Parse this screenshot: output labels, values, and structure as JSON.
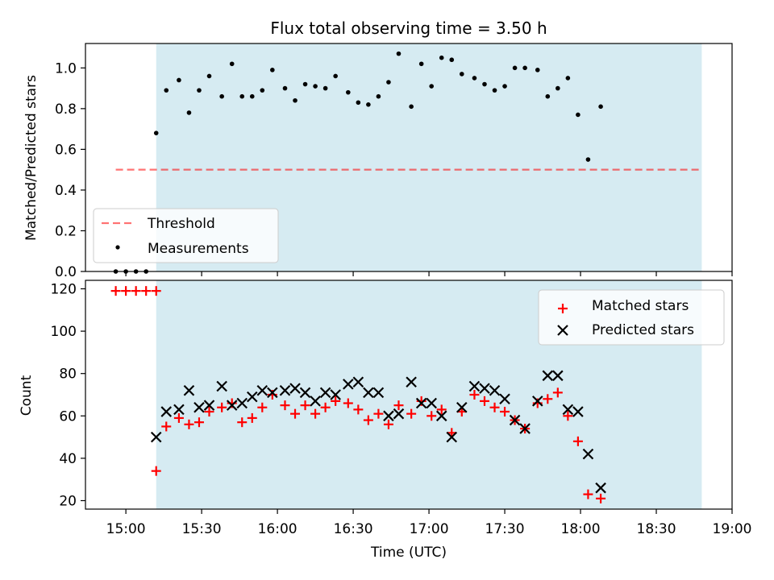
{
  "figure": {
    "title": "Flux total observing time = 3.50 h"
  },
  "colors": {
    "observing_span": "#add8e6",
    "threshold": "#ff0000",
    "measurements": "#000000",
    "matched": "#ff0000",
    "predicted": "#000000"
  },
  "chart_data": [
    {
      "type": "scatter",
      "title": "Flux total observing time = 3.50 h",
      "xlabel": "",
      "ylabel": "Matched/Predicted stars",
      "ylim": [
        0,
        1.12
      ],
      "yticks": [
        0.0,
        0.2,
        0.4,
        0.6,
        0.8,
        1.0
      ],
      "ytick_labels": [
        "0.0",
        "0.2",
        "0.4",
        "0.6",
        "0.8",
        "1.0"
      ],
      "xlim": [
        "14:44",
        "19:00"
      ],
      "shaded_span": [
        "15:12",
        "18:48"
      ],
      "legend_position": "lower-left",
      "threshold": {
        "name": "Threshold",
        "value": 0.5,
        "x": [
          "14:56",
          "18:48"
        ],
        "style": "dashed"
      },
      "series": [
        {
          "name": "Measurements",
          "marker": "dot",
          "points": [
            [
              "14:56",
              0.0
            ],
            [
              "15:00",
              0.0
            ],
            [
              "15:04",
              0.0
            ],
            [
              "15:08",
              0.0
            ],
            [
              "15:12",
              0.68
            ],
            [
              "15:16",
              0.89
            ],
            [
              "15:21",
              0.94
            ],
            [
              "15:25",
              0.78
            ],
            [
              "15:29",
              0.89
            ],
            [
              "15:33",
              0.96
            ],
            [
              "15:38",
              0.86
            ],
            [
              "15:42",
              1.02
            ],
            [
              "15:46",
              0.86
            ],
            [
              "15:50",
              0.86
            ],
            [
              "15:54",
              0.89
            ],
            [
              "15:58",
              0.99
            ],
            [
              "16:03",
              0.9
            ],
            [
              "16:07",
              0.84
            ],
            [
              "16:11",
              0.92
            ],
            [
              "16:15",
              0.91
            ],
            [
              "16:19",
              0.9
            ],
            [
              "16:23",
              0.96
            ],
            [
              "16:28",
              0.88
            ],
            [
              "16:32",
              0.83
            ],
            [
              "16:36",
              0.82
            ],
            [
              "16:40",
              0.86
            ],
            [
              "16:44",
              0.93
            ],
            [
              "16:48",
              1.07
            ],
            [
              "16:53",
              0.81
            ],
            [
              "16:57",
              1.02
            ],
            [
              "17:01",
              0.91
            ],
            [
              "17:05",
              1.05
            ],
            [
              "17:09",
              1.04
            ],
            [
              "17:13",
              0.97
            ],
            [
              "17:18",
              0.95
            ],
            [
              "17:22",
              0.92
            ],
            [
              "17:26",
              0.89
            ],
            [
              "17:30",
              0.91
            ],
            [
              "17:34",
              1.0
            ],
            [
              "17:38",
              1.0
            ],
            [
              "17:43",
              0.99
            ],
            [
              "17:47",
              0.86
            ],
            [
              "17:51",
              0.9
            ],
            [
              "17:55",
              0.95
            ],
            [
              "17:59",
              0.77
            ],
            [
              "18:03",
              0.55
            ],
            [
              "18:08",
              0.81
            ]
          ]
        }
      ]
    },
    {
      "type": "scatter",
      "title": "",
      "xlabel": "Time (UTC)",
      "ylabel": "Count",
      "ylim": [
        16,
        124
      ],
      "yticks": [
        20,
        40,
        60,
        80,
        100,
        120
      ],
      "ytick_labels": [
        "20",
        "40",
        "60",
        "80",
        "100",
        "120"
      ],
      "xlim": [
        "14:44",
        "19:00"
      ],
      "xtick_labels": [
        "15:00",
        "15:30",
        "16:00",
        "16:30",
        "17:00",
        "17:30",
        "18:00",
        "18:30",
        "19:00"
      ],
      "shaded_span": [
        "15:12",
        "18:48"
      ],
      "legend_position": "upper-right",
      "series": [
        {
          "name": "Matched stars",
          "marker": "plus",
          "points": [
            [
              "14:56",
              119
            ],
            [
              "15:00",
              119
            ],
            [
              "15:04",
              119
            ],
            [
              "15:08",
              119
            ],
            [
              "15:12",
              119
            ],
            [
              "15:12",
              34
            ],
            [
              "15:16",
              55
            ],
            [
              "15:21",
              59
            ],
            [
              "15:25",
              56
            ],
            [
              "15:29",
              57
            ],
            [
              "15:33",
              62
            ],
            [
              "15:38",
              64
            ],
            [
              "15:42",
              66
            ],
            [
              "15:46",
              57
            ],
            [
              "15:50",
              59
            ],
            [
              "15:54",
              64
            ],
            [
              "15:58",
              70
            ],
            [
              "16:03",
              65
            ],
            [
              "16:07",
              61
            ],
            [
              "16:11",
              65
            ],
            [
              "16:15",
              61
            ],
            [
              "16:19",
              64
            ],
            [
              "16:23",
              67
            ],
            [
              "16:28",
              66
            ],
            [
              "16:32",
              63
            ],
            [
              "16:36",
              58
            ],
            [
              "16:40",
              61
            ],
            [
              "16:44",
              56
            ],
            [
              "16:48",
              65
            ],
            [
              "16:53",
              61
            ],
            [
              "16:57",
              67
            ],
            [
              "17:01",
              60
            ],
            [
              "17:05",
              63
            ],
            [
              "17:09",
              52
            ],
            [
              "17:13",
              62
            ],
            [
              "17:18",
              70
            ],
            [
              "17:22",
              67
            ],
            [
              "17:26",
              64
            ],
            [
              "17:30",
              62
            ],
            [
              "17:34",
              58
            ],
            [
              "17:38",
              54
            ],
            [
              "17:43",
              66
            ],
            [
              "17:47",
              68
            ],
            [
              "17:51",
              71
            ],
            [
              "17:55",
              60
            ],
            [
              "17:59",
              48
            ],
            [
              "18:03",
              23
            ],
            [
              "18:08",
              21
            ]
          ]
        },
        {
          "name": "Predicted stars",
          "marker": "x",
          "points": [
            [
              "15:12",
              50
            ],
            [
              "15:16",
              62
            ],
            [
              "15:21",
              63
            ],
            [
              "15:25",
              72
            ],
            [
              "15:29",
              64
            ],
            [
              "15:33",
              65
            ],
            [
              "15:38",
              74
            ],
            [
              "15:42",
              65
            ],
            [
              "15:46",
              66
            ],
            [
              "15:50",
              69
            ],
            [
              "15:54",
              72
            ],
            [
              "15:58",
              71
            ],
            [
              "16:03",
              72
            ],
            [
              "16:07",
              73
            ],
            [
              "16:11",
              71
            ],
            [
              "16:15",
              67
            ],
            [
              "16:19",
              71
            ],
            [
              "16:23",
              70
            ],
            [
              "16:28",
              75
            ],
            [
              "16:32",
              76
            ],
            [
              "16:36",
              71
            ],
            [
              "16:40",
              71
            ],
            [
              "16:44",
              60
            ],
            [
              "16:48",
              61
            ],
            [
              "16:53",
              76
            ],
            [
              "16:57",
              66
            ],
            [
              "17:01",
              66
            ],
            [
              "17:05",
              60
            ],
            [
              "17:09",
              50
            ],
            [
              "17:13",
              64
            ],
            [
              "17:18",
              74
            ],
            [
              "17:22",
              73
            ],
            [
              "17:26",
              72
            ],
            [
              "17:30",
              68
            ],
            [
              "17:34",
              58
            ],
            [
              "17:38",
              54
            ],
            [
              "17:43",
              67
            ],
            [
              "17:47",
              79
            ],
            [
              "17:51",
              79
            ],
            [
              "17:55",
              63
            ],
            [
              "17:59",
              62
            ],
            [
              "18:03",
              42
            ],
            [
              "18:08",
              26
            ]
          ]
        }
      ]
    }
  ]
}
